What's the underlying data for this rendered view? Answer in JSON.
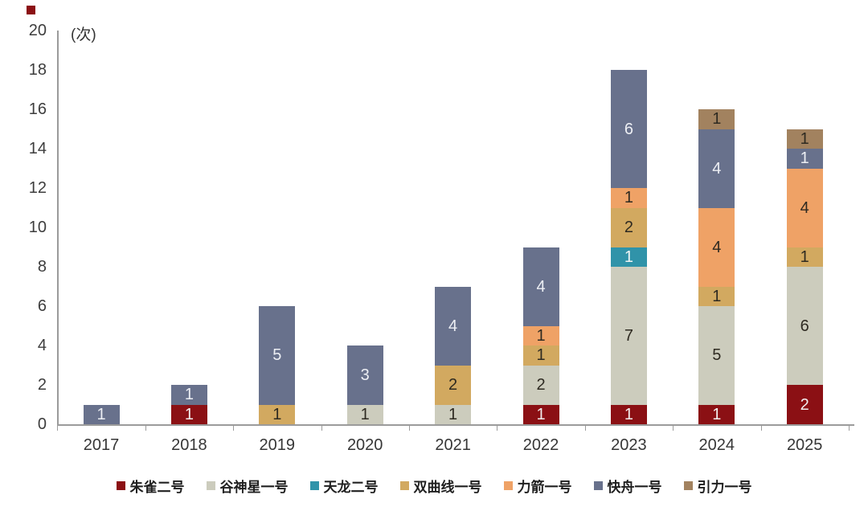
{
  "chart_data": {
    "type": "bar",
    "stacked": true,
    "title": "",
    "ylabel": "(次)",
    "xlabel": "",
    "ylim": [
      0,
      20
    ],
    "y_tick_step": 2,
    "y_ticks": [
      0,
      2,
      4,
      6,
      8,
      10,
      12,
      14,
      16,
      18,
      20
    ],
    "grid": false,
    "legend_position": "bottom",
    "categories": [
      "2017",
      "2018",
      "2019",
      "2020",
      "2021",
      "2022",
      "2023",
      "2024",
      "2025"
    ],
    "series": [
      {
        "name": "朱雀二号",
        "color": "#8b1014",
        "label_color": "#f2efef",
        "values": [
          0,
          1,
          0,
          0,
          0,
          1,
          1,
          1,
          2
        ]
      },
      {
        "name": "谷神星一号",
        "color": "#ccccbd",
        "label_color": "#2e2a21",
        "values": [
          0,
          0,
          0,
          1,
          1,
          2,
          7,
          5,
          6
        ]
      },
      {
        "name": "天龙二号",
        "color": "#3093a9",
        "label_color": "#f0f4f5",
        "values": [
          0,
          0,
          0,
          0,
          0,
          0,
          1,
          0,
          0
        ]
      },
      {
        "name": "双曲线一号",
        "color": "#d2a960",
        "label_color": "#2e2a21",
        "values": [
          0,
          0,
          1,
          0,
          2,
          1,
          2,
          1,
          1
        ]
      },
      {
        "name": "力箭一号",
        "color": "#efa266",
        "label_color": "#2e2a21",
        "values": [
          0,
          0,
          0,
          0,
          0,
          1,
          1,
          4,
          4
        ]
      },
      {
        "name": "快舟一号",
        "color": "#68718c",
        "label_color": "#edeff4",
        "values": [
          1,
          1,
          5,
          3,
          4,
          4,
          6,
          4,
          1
        ]
      },
      {
        "name": "引力一号",
        "color": "#a2825f",
        "label_color": "#2e2a21",
        "values": [
          0,
          0,
          0,
          0,
          0,
          0,
          0,
          1,
          1
        ]
      }
    ],
    "totals": [
      1,
      2,
      6,
      4,
      7,
      9,
      18,
      16,
      15
    ]
  },
  "decorations": {
    "corner_marker_color": "#8b1014",
    "axis_color": "#9b9b9b"
  }
}
